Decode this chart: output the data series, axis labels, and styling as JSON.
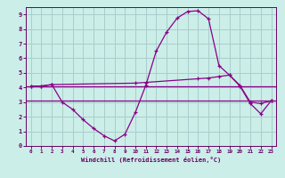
{
  "xlabel": "Windchill (Refroidissement éolien,°C)",
  "background_color": "#cceee8",
  "grid_color": "#aacccc",
  "line_color": "#880088",
  "spine_color": "#660066",
  "xlim": [
    -0.5,
    23.5
  ],
  "ylim": [
    0,
    9.5
  ],
  "xticks": [
    0,
    1,
    2,
    3,
    4,
    5,
    6,
    7,
    8,
    9,
    10,
    11,
    12,
    13,
    14,
    15,
    16,
    17,
    18,
    19,
    20,
    21,
    22,
    23
  ],
  "yticks": [
    0,
    1,
    2,
    3,
    4,
    5,
    6,
    7,
    8,
    9
  ],
  "curve_x": [
    0,
    1,
    2,
    3,
    4,
    5,
    6,
    7,
    8,
    9,
    10,
    11,
    12,
    13,
    14,
    15,
    16,
    17,
    18,
    19,
    20,
    21,
    22,
    23
  ],
  "curve_y": [
    4.1,
    4.1,
    4.2,
    3.0,
    2.5,
    1.8,
    1.2,
    0.7,
    0.35,
    0.8,
    2.3,
    4.15,
    6.5,
    7.8,
    8.75,
    9.2,
    9.25,
    8.7,
    5.5,
    4.85,
    4.1,
    2.9,
    2.2,
    3.1
  ],
  "hline1_y": 4.1,
  "hline2_y": 3.1,
  "trend_x": [
    0,
    1,
    2,
    10,
    11,
    16,
    17,
    18,
    19,
    20,
    21,
    22,
    23
  ],
  "trend_y": [
    4.1,
    4.1,
    4.2,
    4.3,
    4.35,
    4.6,
    4.65,
    4.75,
    4.85,
    4.15,
    3.0,
    2.9,
    3.1
  ]
}
